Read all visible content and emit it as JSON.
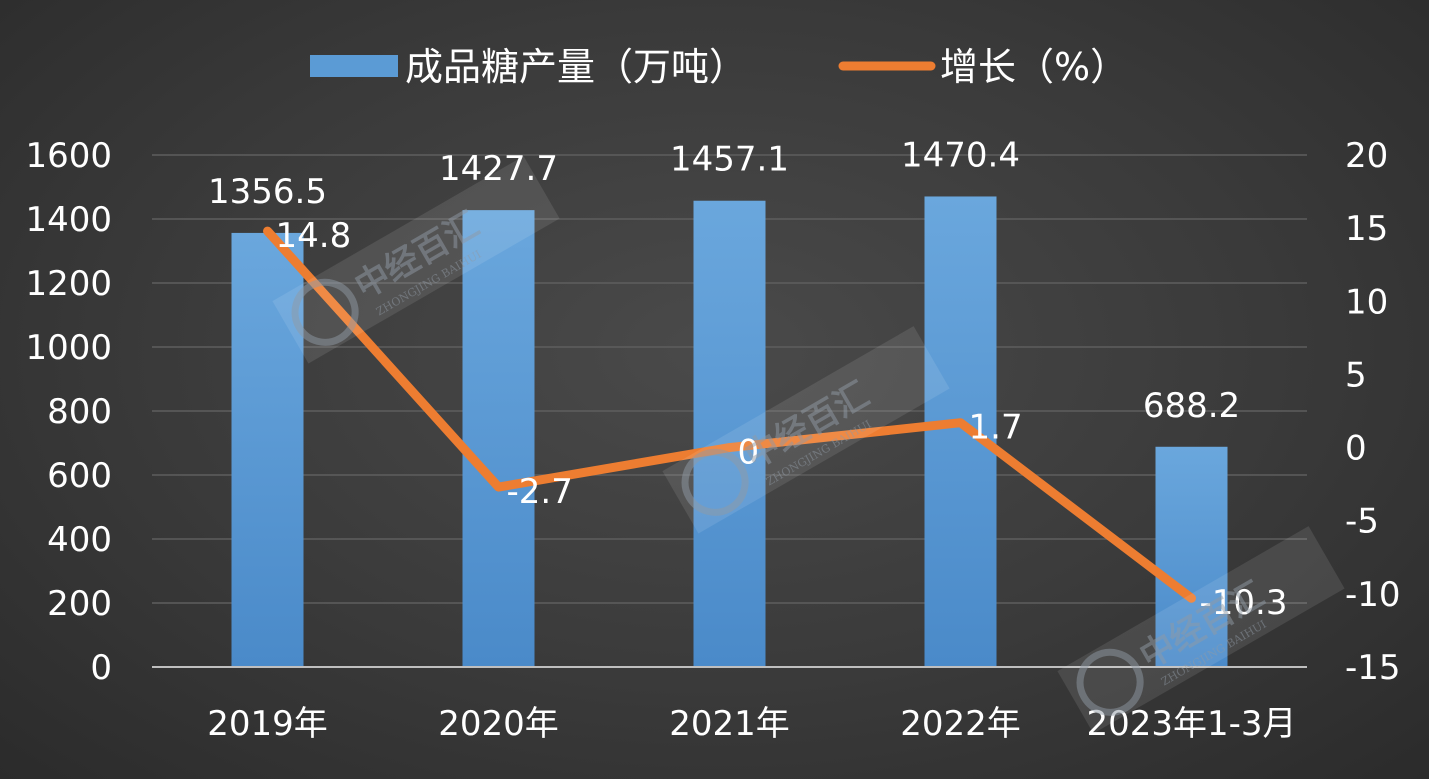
{
  "chart_data": {
    "type": "bar",
    "categories": [
      "2019年",
      "2020年",
      "2021年",
      "2022年",
      "2023年1-3月"
    ],
    "series": [
      {
        "name": "成品糖产量（万吨）",
        "type": "bar",
        "axis": "left",
        "color": "#5b9bd5",
        "values": [
          1356.5,
          1427.7,
          1457.1,
          1470.4,
          688.2
        ],
        "labels": [
          "1356.5",
          "1427.7",
          "1457.1",
          "1470.4",
          "688.2"
        ]
      },
      {
        "name": "增长（%）",
        "type": "line",
        "axis": "right",
        "color": "#ed7d31",
        "values": [
          14.8,
          -2.7,
          0,
          1.7,
          -10.3
        ],
        "labels": [
          "14.8",
          "-2.7",
          "0",
          "1.7",
          "-10.3"
        ]
      }
    ],
    "y_left": {
      "ylim": [
        0,
        1600
      ],
      "ticks": [
        "0",
        "200",
        "400",
        "600",
        "800",
        "1000",
        "1200",
        "1400",
        "1600"
      ]
    },
    "y_right": {
      "ylim": [
        -15,
        20
      ],
      "ticks": [
        "-15",
        "-10",
        "-5",
        "0",
        "5",
        "10",
        "15",
        "20"
      ]
    },
    "grid": true,
    "legend_position": "top"
  },
  "watermark": {
    "text": "中经百汇",
    "sub": "ZHONGJING BAIHUI"
  }
}
